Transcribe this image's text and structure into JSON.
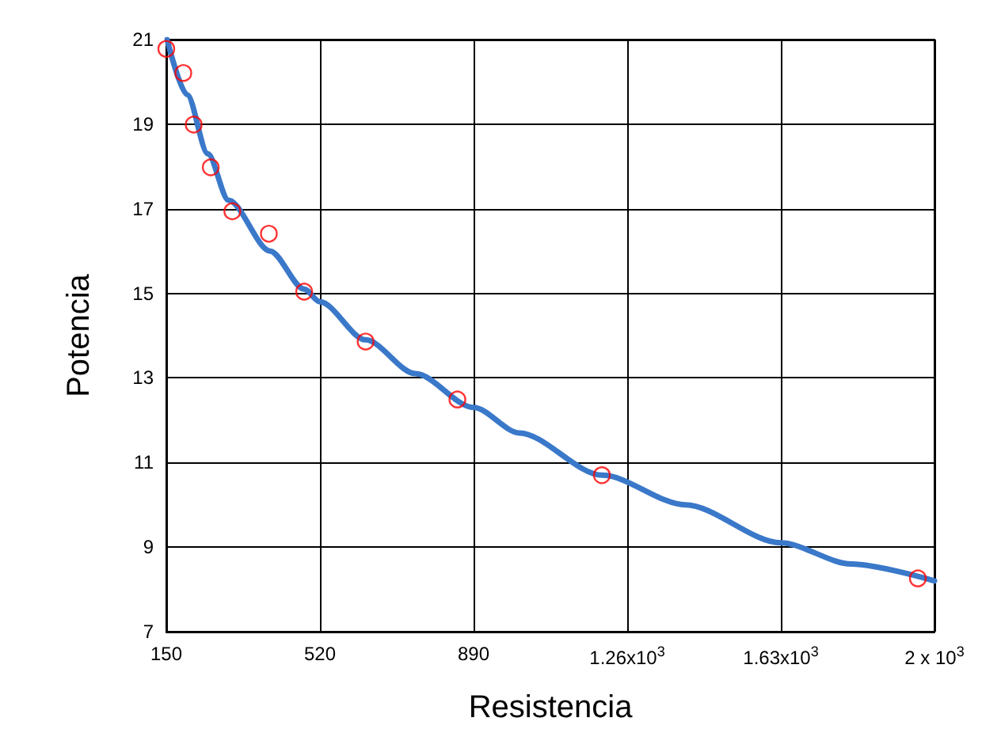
{
  "chart_data": {
    "type": "scatter",
    "xlabel": "Resistencia",
    "ylabel": "Potencia",
    "xlim": [
      150,
      2000
    ],
    "xticks": [
      150,
      520,
      890,
      {
        "value": 1260,
        "label": "1.26x10$^{3}$"
      },
      {
        "value": 1630,
        "label": "1.63x10$^{3}$"
      },
      {
        "value": 2000,
        "label": "2 x 10$^{3}$"
      }
    ],
    "ylim": [
      7,
      21
    ],
    "yticks": [
      7,
      9,
      11,
      13,
      15,
      17,
      19,
      21
    ],
    "grid": true,
    "series": [
      {
        "color": "#ff0000",
        "marker": "circle",
        "x": [
          150,
          191,
          216,
          257,
          309,
          397,
          482,
          630,
          851,
          1199,
          1960
        ],
        "values": [
          20.78,
          20.21,
          18.99,
          17.98,
          16.94,
          16.41,
          15.04,
          13.86,
          12.49,
          10.7,
          8.26
        ]
      },
      {
        "type": "line",
        "color": "#3a78c9",
        "marker": "none",
        "x": [
          152,
          200,
          250,
          300,
          400,
          482,
          520,
          630,
          750,
          890,
          1000,
          1200,
          1400,
          1630,
          1800,
          2000
        ],
        "values": [
          21,
          19.7,
          18.3,
          17.2,
          16.0,
          15.1,
          14.8,
          13.9,
          13.1,
          12.3,
          11.7,
          10.7,
          10.0,
          9.1,
          8.6,
          8.2
        ]
      }
    ]
  }
}
